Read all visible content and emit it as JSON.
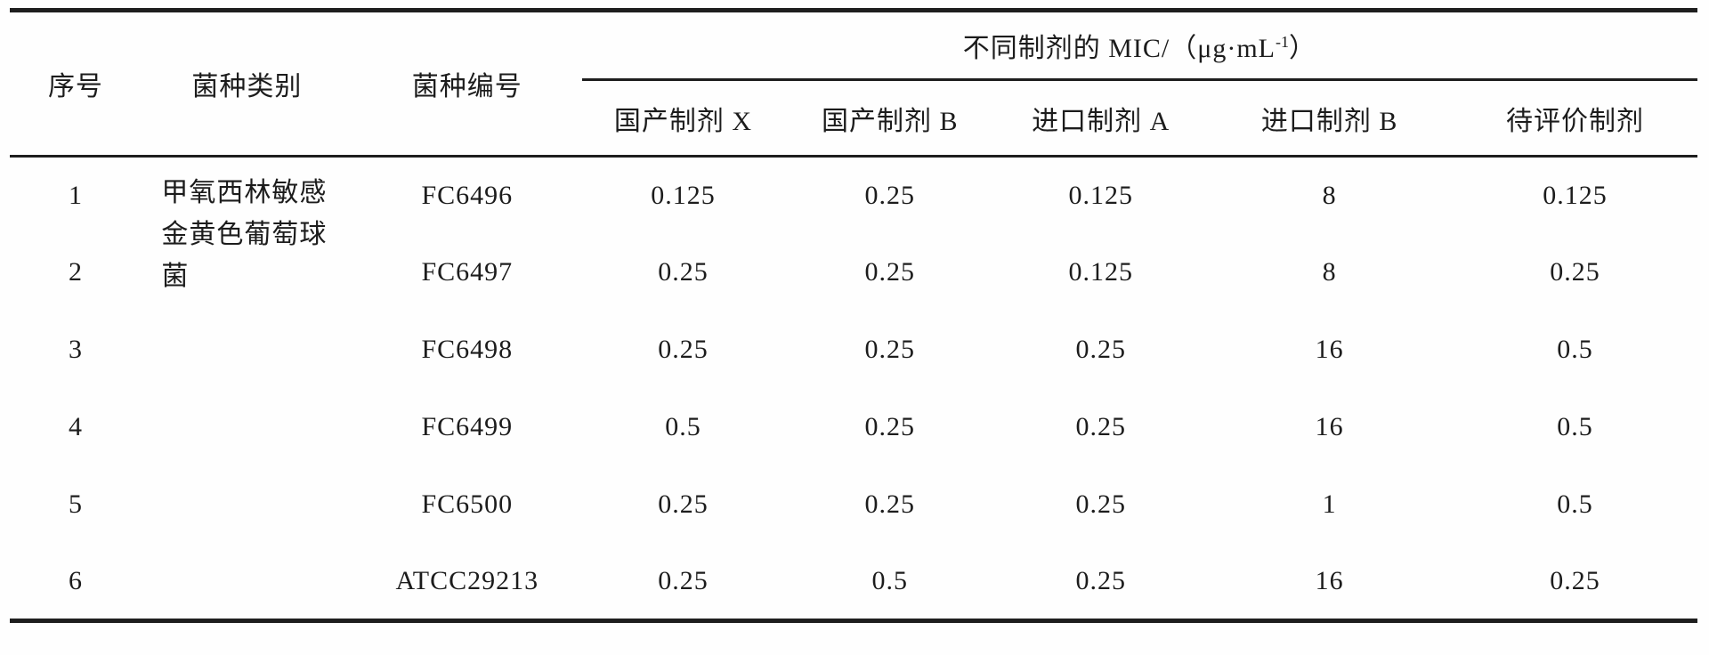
{
  "table": {
    "columns": {
      "col_serial": "序号",
      "col_category": "菌种类别",
      "col_strain_id": "菌种编号",
      "mic_group_prefix": "不同制剂的 MIC/（μg·mL",
      "mic_group_sup": "-1",
      "mic_group_suffix": "）",
      "mic_columns": [
        "国产制剂 X",
        "国产制剂 B",
        "进口制剂 A",
        "进口制剂 B",
        "待评价制剂"
      ]
    },
    "category_span_text": "甲氧西林敏感金黄色葡萄球菌",
    "rows": [
      {
        "serial": "1",
        "strain_id": "FC6496",
        "mic": [
          "0.125",
          "0.25",
          "0.125",
          "8",
          "0.125"
        ]
      },
      {
        "serial": "2",
        "strain_id": "FC6497",
        "mic": [
          "0.25",
          "0.25",
          "0.125",
          "8",
          "0.25"
        ]
      },
      {
        "serial": "3",
        "strain_id": "FC6498",
        "mic": [
          "0.25",
          "0.25",
          "0.25",
          "16",
          "0.5"
        ]
      },
      {
        "serial": "4",
        "strain_id": "FC6499",
        "mic": [
          "0.5",
          "0.25",
          "0.25",
          "16",
          "0.5"
        ]
      },
      {
        "serial": "5",
        "strain_id": "FC6500",
        "mic": [
          "0.25",
          "0.25",
          "0.25",
          "1",
          "0.5"
        ]
      },
      {
        "serial": "6",
        "strain_id": "ATCC29213",
        "mic": [
          "0.25",
          "0.5",
          "0.25",
          "16",
          "0.25"
        ]
      }
    ],
    "colors": {
      "text": "#1c1c1c",
      "rule": "#1e1e1e",
      "background": "#fefefe"
    }
  }
}
